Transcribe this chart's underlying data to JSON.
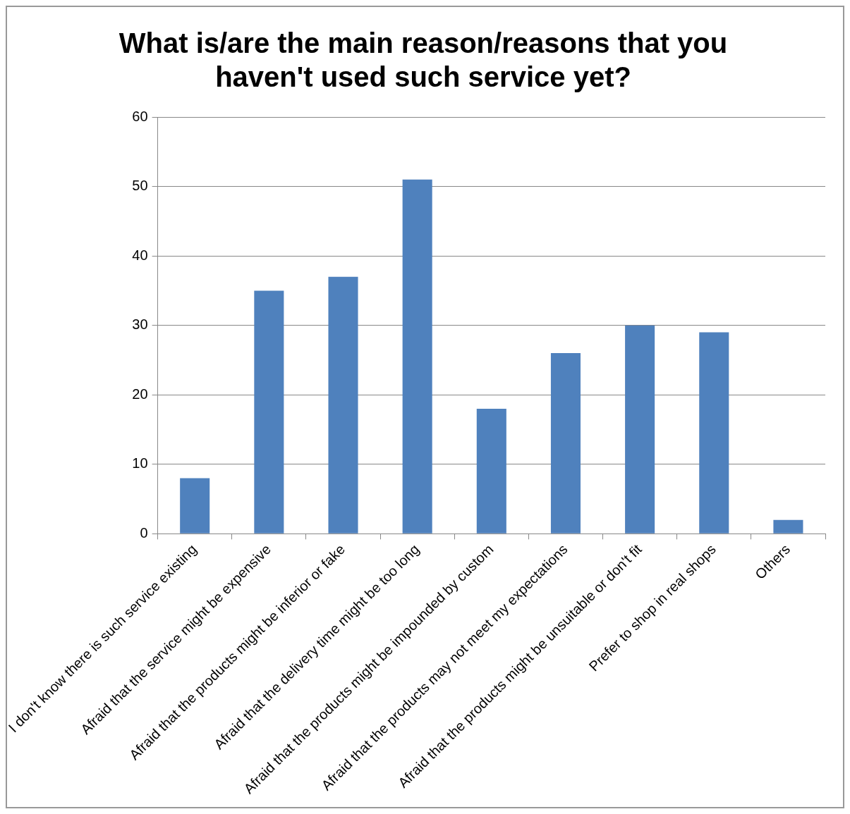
{
  "chart_data": {
    "type": "bar",
    "title": "What is/are the main reason/reasons that you haven't used such service yet?",
    "categories": [
      "I don't know there is such service existing",
      "Afraid that the service might be expensive",
      "Afraid that the products might be inferior or fake",
      "Afraid that the delivery time might be too long",
      "Afraid that the products might be impounded by custom",
      "Afraid that the products may not meet my expectations",
      "Afraid that the products might be unsuitable or don't fit",
      "Prefer to shop in real shops",
      "Others"
    ],
    "values": [
      8,
      35,
      37,
      51,
      18,
      26,
      30,
      29,
      2
    ],
    "color": "#4f81bd",
    "ylim": [
      0,
      60
    ],
    "yticks": [
      0,
      10,
      20,
      30,
      40,
      50,
      60
    ],
    "grid": "y",
    "legend": false
  }
}
